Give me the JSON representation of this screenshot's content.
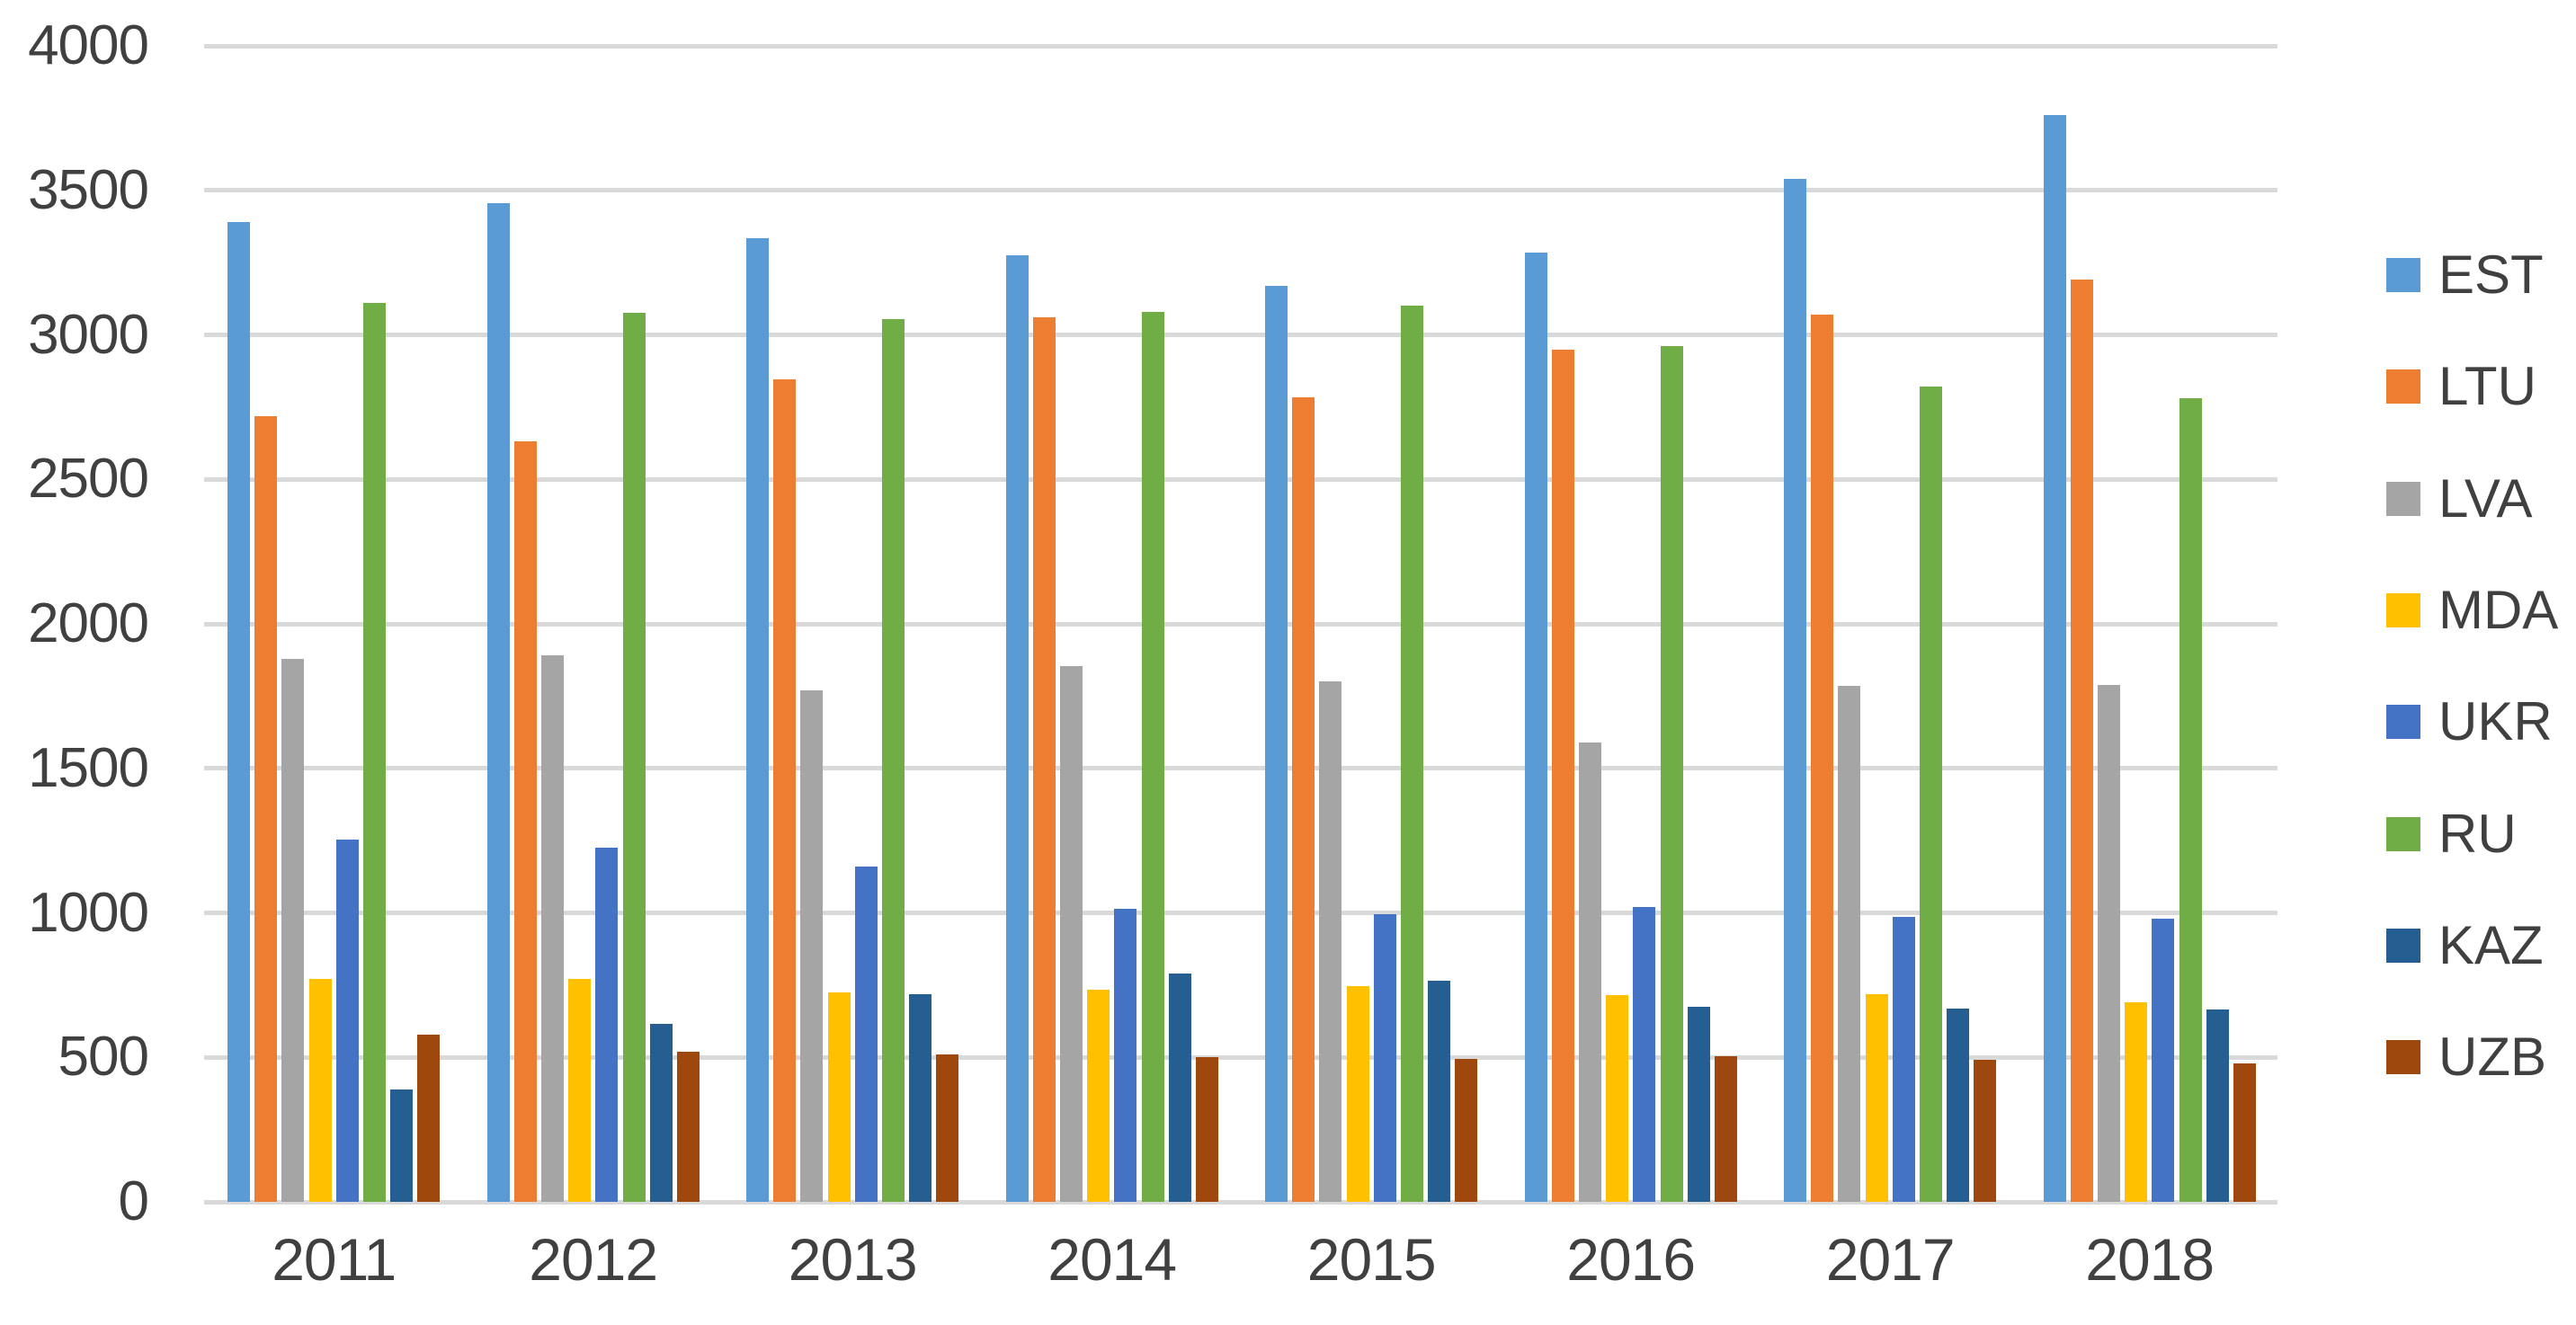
{
  "chart_data": {
    "type": "bar",
    "title": "",
    "xlabel": "",
    "ylabel": "",
    "categories": [
      "2011",
      "2012",
      "2013",
      "2014",
      "2015",
      "2016",
      "2017",
      "2018"
    ],
    "series": [
      {
        "name": "EST",
        "color": "#5B9BD5",
        "values": [
          3390,
          3455,
          3335,
          3275,
          3170,
          3285,
          3540,
          3760
        ]
      },
      {
        "name": "LTU",
        "color": "#ED7D31",
        "values": [
          2720,
          2630,
          2845,
          3060,
          2785,
          2950,
          3070,
          3190
        ]
      },
      {
        "name": "LVA",
        "color": "#A5A5A5",
        "values": [
          1880,
          1890,
          1770,
          1855,
          1800,
          1590,
          1785,
          1790
        ]
      },
      {
        "name": "MDA",
        "color": "#FFC000",
        "values": [
          770,
          770,
          725,
          735,
          745,
          715,
          720,
          690
        ]
      },
      {
        "name": "UKR",
        "color": "#4472C4",
        "values": [
          1255,
          1225,
          1160,
          1015,
          995,
          1020,
          985,
          980
        ]
      },
      {
        "name": "RU",
        "color": "#70AD47",
        "values": [
          3110,
          3075,
          3055,
          3080,
          3100,
          2960,
          2820,
          2780
        ]
      },
      {
        "name": "KAZ",
        "color": "#255E91",
        "values": [
          390,
          615,
          720,
          790,
          765,
          675,
          670,
          665
        ]
      },
      {
        "name": "UZB",
        "color": "#9E480E",
        "values": [
          580,
          520,
          510,
          500,
          495,
          505,
          490,
          480
        ]
      }
    ],
    "ylim": [
      0,
      4000
    ],
    "ytick_step": 500,
    "yticks": [
      "0",
      "500",
      "1000",
      "1500",
      "2000",
      "2500",
      "3000",
      "3500",
      "4000"
    ],
    "grid": "horizontal",
    "gridline_color": "#D9D9D9",
    "axis_text_color": "#404040",
    "background": "#FFFFFF",
    "legend_position": "right"
  }
}
